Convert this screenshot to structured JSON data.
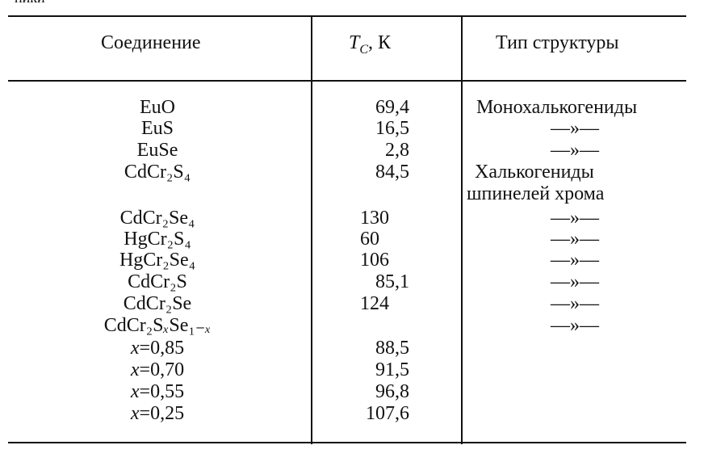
{
  "fragment": "ники",
  "table": {
    "header": {
      "compound": "Соединение",
      "tc_symbol": "T",
      "tc_subscript": "C",
      "tc_unit": ", К",
      "type": "Тип структуры"
    },
    "rows": [
      [
        "EuO",
        "69,4",
        "Монохалькогениды"
      ],
      [
        "EuS",
        "16,5",
        "—»—"
      ],
      [
        "EuSe",
        "2,8",
        "—»—"
      ],
      [
        "CdCr₂S₄",
        "84,5",
        "Халькогениды шпинелей хрома"
      ],
      [
        "CdCr₂Se₄",
        "130",
        "—»—"
      ],
      [
        "HgCr₂S₄",
        "60",
        "—»—"
      ],
      [
        "HgCr₂Se₄",
        "106",
        "—»—"
      ],
      [
        "CdCr₂S",
        "85,1",
        "—»—"
      ],
      [
        "CdCr₂Se",
        "124",
        "—»—"
      ],
      [
        "CdCr₂SₓSe₁₋ₓ",
        null,
        "—»—"
      ],
      [
        "x=0,85",
        "88,5",
        null
      ],
      [
        "x=0,70",
        "91,5",
        null
      ],
      [
        "x=0,55",
        "96,8",
        null
      ],
      [
        "x=0,25",
        "107,6",
        null
      ]
    ]
  }
}
